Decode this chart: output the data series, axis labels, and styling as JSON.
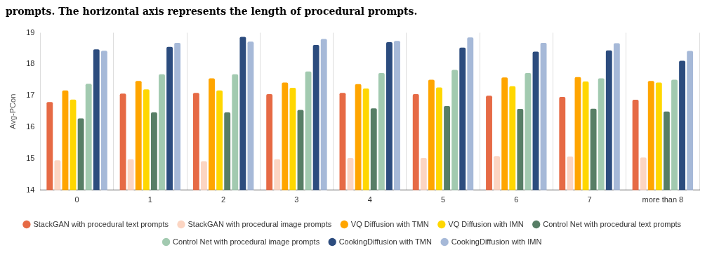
{
  "chart_data": {
    "type": "bar",
    "title": "prompts. The horizontal axis represents the length of procedural prompts.",
    "ylabel": "Avg-PCon",
    "categories": [
      "0",
      "1",
      "2",
      "3",
      "4",
      "5",
      "6",
      "7",
      "more than 8"
    ],
    "series": [
      {
        "name": "StackGAN with procedural text prompts",
        "color": "#e66a45",
        "values": [
          16.8,
          17.07,
          17.09,
          17.05,
          17.09,
          17.05,
          17.0,
          16.96,
          16.87
        ]
      },
      {
        "name": "StackGAN with procedural image prompts",
        "color": "#fcd5c2",
        "values": [
          14.95,
          14.98,
          14.92,
          14.98,
          15.02,
          15.02,
          15.08,
          15.07,
          15.04
        ]
      },
      {
        "name": "VQ Diffusion with TMN",
        "color": "#ffa500",
        "values": [
          17.17,
          17.47,
          17.55,
          17.42,
          17.37,
          17.51,
          17.58,
          17.59,
          17.47
        ]
      },
      {
        "name": "VQ Diffusion with IMN",
        "color": "#ffd700",
        "values": [
          16.88,
          17.2,
          17.17,
          17.25,
          17.23,
          17.26,
          17.3,
          17.45,
          17.42
        ]
      },
      {
        "name": "Control Net with procedural text prompts",
        "color": "#577e66",
        "values": [
          16.28,
          16.47,
          16.47,
          16.55,
          16.6,
          16.67,
          16.58,
          16.59,
          16.5
        ]
      },
      {
        "name": "Control Net with procedural image prompts",
        "color": "#a2cab0",
        "values": [
          17.38,
          17.68,
          17.68,
          17.77,
          17.72,
          17.82,
          17.72,
          17.55,
          17.51
        ]
      },
      {
        "name": "CookingDiffusion with TMN",
        "color": "#2c4c7e",
        "values": [
          18.47,
          18.55,
          18.87,
          18.61,
          18.7,
          18.53,
          18.4,
          18.44,
          18.11
        ]
      },
      {
        "name": "CookingDiffusion with IMN",
        "color": "#a6b9d8",
        "values": [
          18.43,
          18.68,
          18.72,
          18.8,
          18.74,
          18.85,
          18.68,
          18.67,
          18.42
        ]
      }
    ],
    "ylim": [
      14,
      19
    ],
    "yticks": [
      14,
      15,
      16,
      17,
      18,
      19
    ],
    "grid": "x",
    "legend": "bottom"
  }
}
